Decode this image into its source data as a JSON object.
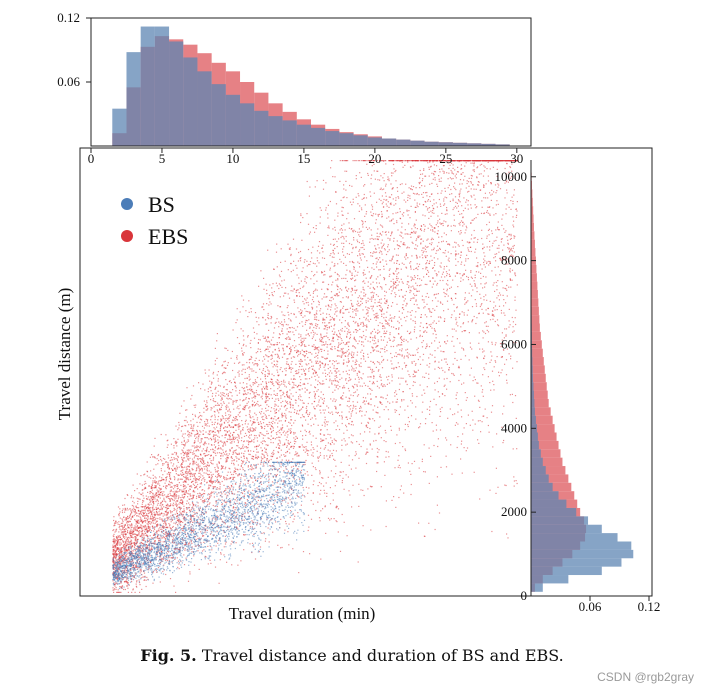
{
  "caption": {
    "label": "Fig. 5.",
    "text": "Travel distance and duration of BS and EBS."
  },
  "watermark": "CSDN @rgb2gray",
  "colors": {
    "bs": "#4c7db8",
    "ebs": "#d9353a",
    "bs_hist": "#5e86b3",
    "ebs_hist": "#e26b70",
    "overlap": "#7a6f95"
  },
  "chart_data": [
    {
      "type": "scatter",
      "role": "main",
      "xlabel": "Travel duration (min)",
      "ylabel": "Travel distance (m)",
      "xlim": [
        0,
        31
      ],
      "ylim": [
        0,
        10400
      ],
      "x_ticks": [
        0,
        5,
        10,
        15,
        20,
        25,
        30
      ],
      "y_ticks": [
        0,
        2000,
        4000,
        6000,
        8000,
        10000
      ],
      "x_tick_labels": [
        "0",
        "5",
        "10",
        "15",
        "20",
        "25",
        "30"
      ],
      "y_tick_labels": [
        "0",
        "2000",
        "4000",
        "6000",
        "8000",
        "10000"
      ],
      "legend": {
        "position": "top-left",
        "entries": [
          "BS",
          "EBS"
        ]
      },
      "series": [
        {
          "name": "BS",
          "x_range": [
            1.5,
            15
          ],
          "y_range": [
            100,
            3200
          ],
          "dense_core": [
            {
              "x": 2,
              "y": 500
            },
            {
              "x": 4,
              "y": 900
            },
            {
              "x": 6,
              "y": 1300
            },
            {
              "x": 8,
              "y": 1700
            },
            {
              "x": 10,
              "y": 2000
            }
          ]
        },
        {
          "name": "EBS",
          "x_range": [
            1.5,
            30
          ],
          "y_range": [
            100,
            10400
          ],
          "dense_core": [
            {
              "x": 3,
              "y": 1200
            },
            {
              "x": 6,
              "y": 2600
            },
            {
              "x": 10,
              "y": 4000
            },
            {
              "x": 15,
              "y": 5500
            },
            {
              "x": 20,
              "y": 6500
            },
            {
              "x": 25,
              "y": 7500
            },
            {
              "x": 30,
              "y": 8500
            }
          ]
        }
      ],
      "grid": false
    },
    {
      "type": "bar",
      "role": "top-marginal",
      "xlim": [
        0,
        31
      ],
      "ylim": [
        0,
        0.12
      ],
      "y_ticks": [
        0.06,
        0.12
      ],
      "y_tick_labels": [
        "0.06",
        "0.12"
      ],
      "bin_width": 1,
      "bin_start": 1.5,
      "series": [
        {
          "name": "BS",
          "values": [
            0.035,
            0.088,
            0.112,
            0.112,
            0.098,
            0.083,
            0.07,
            0.058,
            0.048,
            0.04,
            0.033,
            0.028,
            0.024,
            0.02,
            0.017,
            0.014,
            0.012,
            0.01,
            0.008,
            0.007,
            0.006,
            0.005,
            0.004,
            0.0035,
            0.003,
            0.0025,
            0.002,
            0.0015
          ]
        },
        {
          "name": "EBS",
          "values": [
            0.012,
            0.055,
            0.093,
            0.103,
            0.1,
            0.095,
            0.087,
            0.078,
            0.07,
            0.06,
            0.05,
            0.04,
            0.032,
            0.025,
            0.02,
            0.016,
            0.013,
            0.011,
            0.009,
            0.007,
            0.006,
            0.005,
            0.004,
            0.0035,
            0.003,
            0.0025,
            0.002,
            0.0015
          ]
        }
      ]
    },
    {
      "type": "bar",
      "role": "right-marginal",
      "orientation": "horizontal",
      "ylim": [
        0,
        10400
      ],
      "xlim": [
        0,
        0.12
      ],
      "x_ticks": [
        0.06,
        0.12
      ],
      "x_tick_labels": [
        "0.06",
        "0.12"
      ],
      "bin_height": 200,
      "bin_start": 100,
      "series": [
        {
          "name": "BS",
          "values": [
            0.012,
            0.038,
            0.072,
            0.092,
            0.104,
            0.102,
            0.088,
            0.072,
            0.058,
            0.046,
            0.036,
            0.028,
            0.022,
            0.018,
            0.015,
            0.012,
            0.01,
            0.008,
            0.007,
            0.006,
            0.005,
            0.004,
            0.0035,
            0.003,
            0.0025,
            0.002,
            0.0018,
            0.0015,
            0.0012,
            0.001,
            0.0009,
            0.0008,
            0.0007,
            0.0006,
            0.0005,
            0.0004,
            0.0004,
            0.0003,
            0.0003,
            0.0002,
            0.0002,
            0.0002,
            0.0001,
            0.0001,
            0.0001,
            0.0001,
            0.0001,
            0.0001,
            0.0001,
            0.0001,
            0.0001
          ]
        },
        {
          "name": "EBS",
          "values": [
            0.004,
            0.012,
            0.022,
            0.032,
            0.042,
            0.05,
            0.055,
            0.056,
            0.054,
            0.05,
            0.047,
            0.044,
            0.041,
            0.038,
            0.035,
            0.032,
            0.03,
            0.028,
            0.026,
            0.024,
            0.022,
            0.02,
            0.018,
            0.017,
            0.016,
            0.015,
            0.014,
            0.013,
            0.012,
            0.011,
            0.01,
            0.009,
            0.0085,
            0.008,
            0.0075,
            0.007,
            0.0065,
            0.006,
            0.0055,
            0.005,
            0.0045,
            0.004,
            0.0035,
            0.003,
            0.0026,
            0.0022,
            0.0018,
            0.0014,
            0.001,
            0.0007,
            0.0004
          ]
        }
      ]
    }
  ]
}
